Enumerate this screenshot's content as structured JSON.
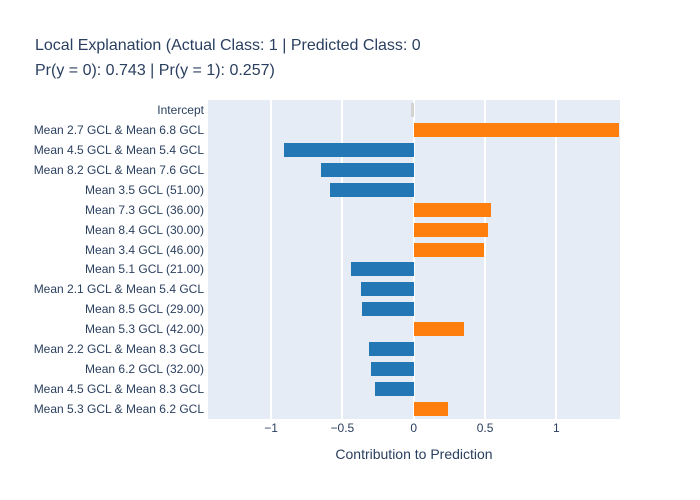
{
  "title": {
    "line1": "Local Explanation (Actual Class: 1 | Predicted Class: 0",
    "line2": "Pr(y = 0): 0.743 | Pr(y = 1): 0.257)"
  },
  "chart_data": {
    "type": "bar",
    "orientation": "horizontal",
    "title": "Local Explanation (Actual Class: 1 | Predicted Class: 0 Pr(y = 0): 0.743 | Pr(y = 1): 0.257)",
    "xlabel": "Contribution to Prediction",
    "ylabel": "",
    "xlim": [
      -1.442,
      1.446
    ],
    "xticks": [
      -1,
      -0.5,
      0,
      0.5,
      1
    ],
    "xtick_labels": [
      "−1",
      "−0.5",
      "0",
      "0.5",
      "1"
    ],
    "grid": true,
    "legend": "none",
    "categories": [
      "Intercept",
      "Mean 2.7 GCL & Mean 6.8 GCL",
      "Mean 4.5 GCL & Mean 5.4 GCL",
      "Mean 8.2 GCL & Mean 7.6 GCL",
      "Mean 3.5 GCL (51.00)",
      "Mean 7.3 GCL (36.00)",
      "Mean 8.4 GCL (30.00)",
      "Mean 3.4 GCL (46.00)",
      "Mean 5.1 GCL (21.00)",
      "Mean 2.1 GCL & Mean 5.4 GCL",
      "Mean 8.5 GCL (29.00)",
      "Mean 5.3 GCL (42.00)",
      "Mean 2.2 GCL & Mean 8.3 GCL",
      "Mean 6.2 GCL (32.00)",
      "Mean 4.5 GCL & Mean 8.3 GCL",
      "Mean 5.3 GCL & Mean 6.2 GCL"
    ],
    "values": [
      -0.02,
      1.44,
      -0.91,
      -0.65,
      -0.59,
      0.54,
      0.52,
      0.49,
      -0.44,
      -0.37,
      -0.36,
      0.35,
      -0.31,
      -0.3,
      -0.27,
      0.24
    ],
    "colors": {
      "positive": "#ff7f0e",
      "negative": "#2277b4",
      "intercept": "#d3d3d3"
    },
    "plot_bg": "#e5ecf6",
    "grid_color": "#ffffff",
    "text_color": "#2a3f5f"
  }
}
